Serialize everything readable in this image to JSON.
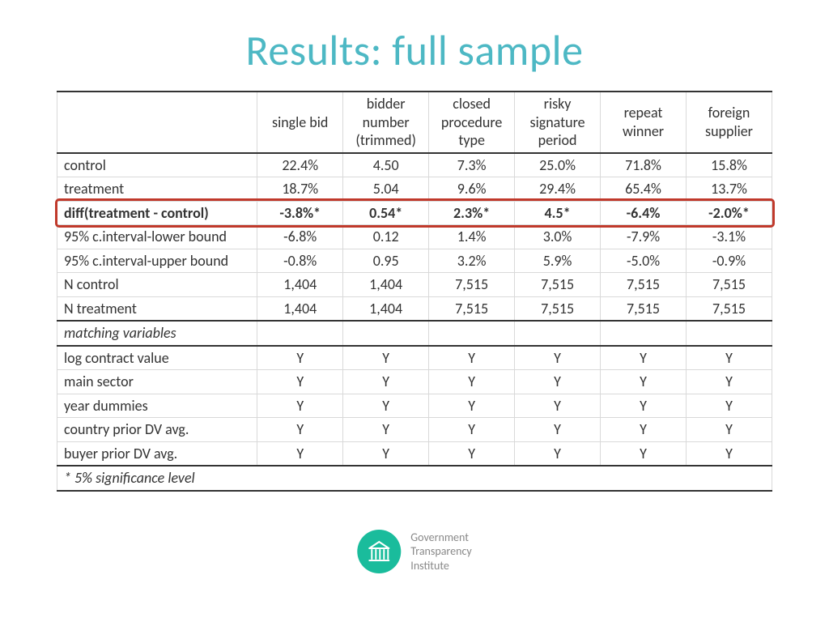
{
  "title": {
    "text": "Results: full sample",
    "color": "#4db8c4"
  },
  "table": {
    "columns": [
      "single bid",
      "bidder number (trimmed)",
      "closed procedure type",
      "risky signature period",
      "repeat winner",
      "foreign supplier"
    ],
    "col_widths_pct": [
      28,
      12,
      12,
      12,
      12,
      12,
      12
    ],
    "rows": [
      {
        "label": "control",
        "cells": [
          "22.4%",
          "4.50",
          "7.3%",
          "25.0%",
          "71.8%",
          "15.8%"
        ]
      },
      {
        "label": "treatment",
        "cells": [
          "18.7%",
          "5.04",
          "9.6%",
          "29.4%",
          "65.4%",
          "13.7%"
        ]
      },
      {
        "label": "diff(treatment - control)",
        "cells": [
          "-3.8%*",
          "0.54*",
          "2.3%*",
          "4.5*",
          "-6.4%",
          "-2.0%*"
        ],
        "style": "diff"
      },
      {
        "label": "95% c.interval-lower bound",
        "cells": [
          "-6.8%",
          "0.12",
          "1.4%",
          "3.0%",
          "-7.9%",
          "-3.1%"
        ]
      },
      {
        "label": "95% c.interval-upper bound",
        "cells": [
          "-0.8%",
          "0.95",
          "3.2%",
          "5.9%",
          "-5.0%",
          "-0.9%"
        ]
      },
      {
        "label": "N control",
        "cells": [
          "1,404",
          "1,404",
          "7,515",
          "7,515",
          "7,515",
          "7,515"
        ]
      },
      {
        "label": "N treatment",
        "cells": [
          "1,404",
          "1,404",
          "7,515",
          "7,515",
          "7,515",
          "7,515"
        ],
        "style": "section-bottom"
      },
      {
        "label": "matching variables",
        "cells": [
          "",
          "",
          "",
          "",
          "",
          ""
        ],
        "style": "matching-header"
      },
      {
        "label": "log contract value",
        "cells": [
          "Y",
          "Y",
          "Y",
          "Y",
          "Y",
          "Y"
        ],
        "style": "section-top"
      },
      {
        "label": "main sector",
        "cells": [
          "Y",
          "Y",
          "Y",
          "Y",
          "Y",
          "Y"
        ]
      },
      {
        "label": "year dummies",
        "cells": [
          "Y",
          "Y",
          "Y",
          "Y",
          "Y",
          "Y"
        ]
      },
      {
        "label": "country prior DV avg.",
        "cells": [
          "Y",
          "Y",
          "Y",
          "Y",
          "Y",
          "Y"
        ]
      },
      {
        "label": "buyer prior DV avg.",
        "cells": [
          "Y",
          "Y",
          "Y",
          "Y",
          "Y",
          "Y"
        ],
        "style": "section-bottom"
      }
    ],
    "footnote": "* 5% significance level",
    "header_border_color": "#333333",
    "cell_border_color": "#d9d9d9"
  },
  "highlight": {
    "target_row_index": 2,
    "border_color": "#c0392b"
  },
  "logo": {
    "circle_color": "#1abc9c",
    "text_lines": [
      "Government",
      "Transparency",
      "Institute"
    ],
    "text_color": "#888888"
  }
}
